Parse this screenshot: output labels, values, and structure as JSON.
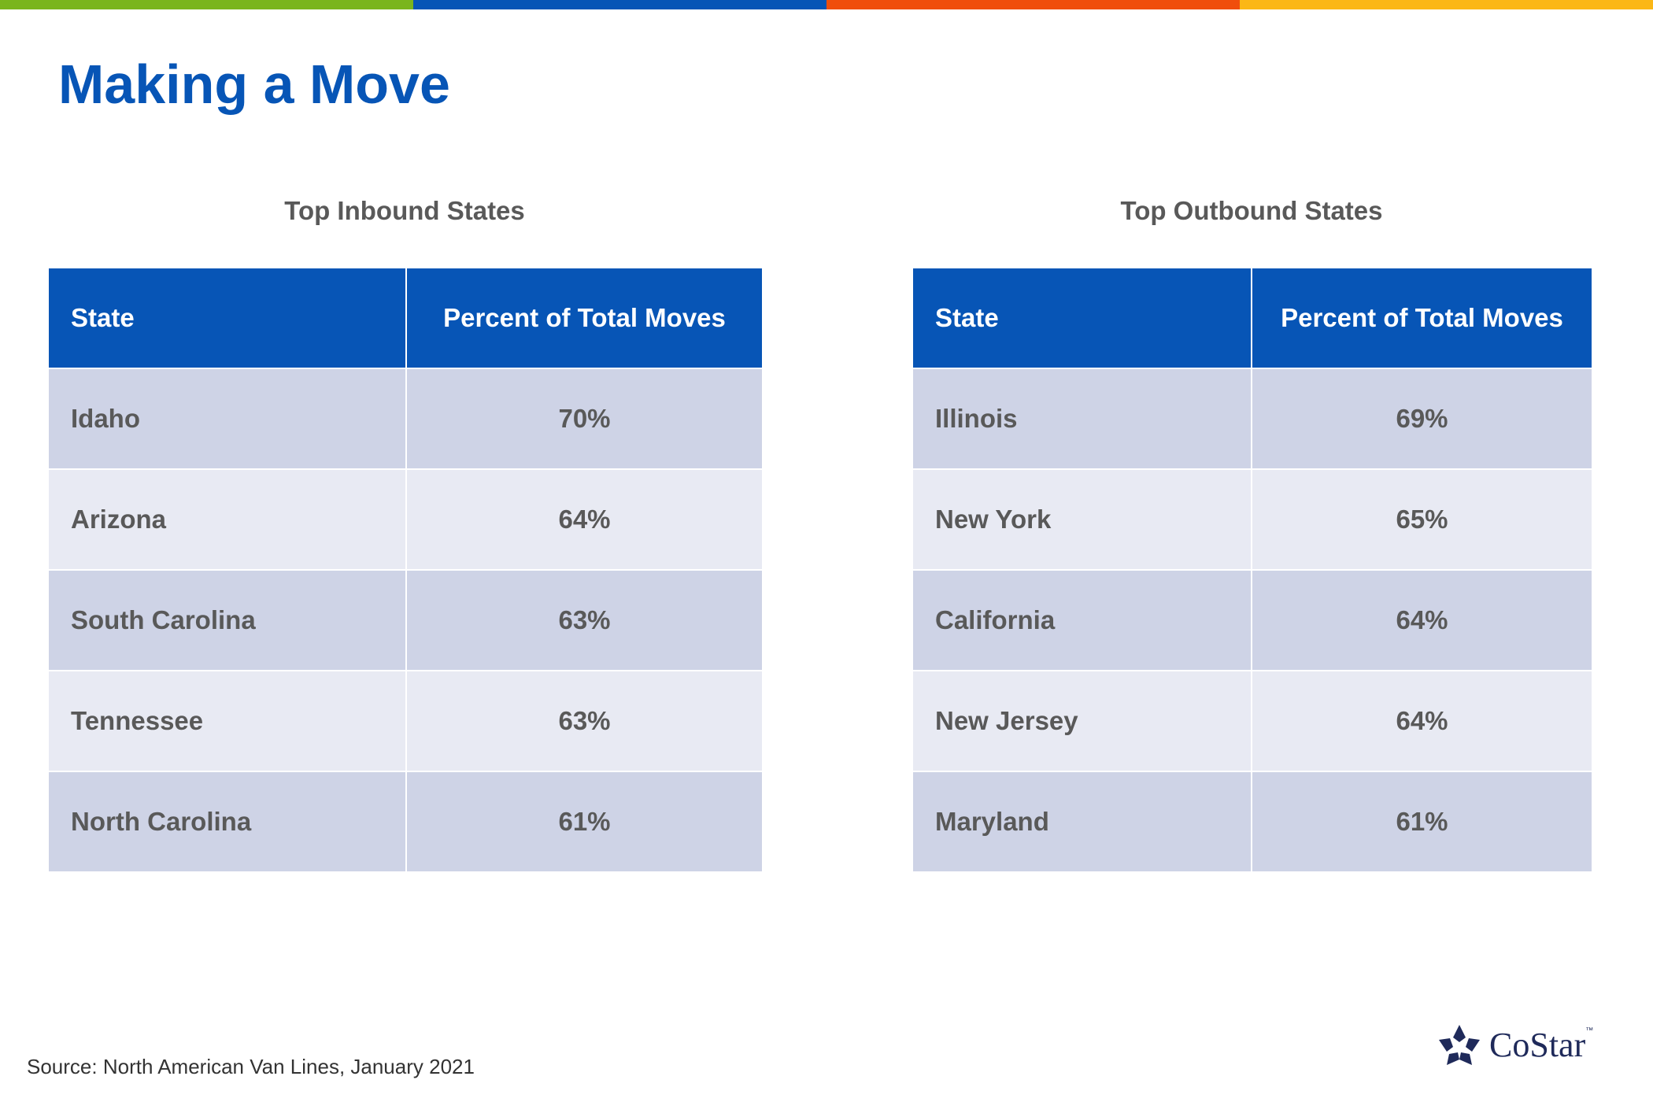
{
  "colors": {
    "bar_green": "#7ab51d",
    "bar_blue": "#0755b6",
    "bar_orange": "#f04e0c",
    "bar_yellow": "#fbb716",
    "title": "#0755b6",
    "header_bg": "#0755b6",
    "row_dark": "#ced3e6",
    "row_light": "#e8eaf3"
  },
  "title": "Making a Move",
  "inbound": {
    "caption": "Top Inbound States",
    "headers": [
      "State",
      "Percent of Total Moves"
    ],
    "rows": [
      {
        "state": "Idaho",
        "percent": "70%"
      },
      {
        "state": "Arizona",
        "percent": "64%"
      },
      {
        "state": "South Carolina",
        "percent": "63%"
      },
      {
        "state": "Tennessee",
        "percent": "63%"
      },
      {
        "state": "North Carolina",
        "percent": "61%"
      }
    ]
  },
  "outbound": {
    "caption": "Top Outbound States",
    "headers": [
      "State",
      "Percent of Total Moves"
    ],
    "rows": [
      {
        "state": "Illinois",
        "percent": "69%"
      },
      {
        "state": "New York",
        "percent": "65%"
      },
      {
        "state": "California",
        "percent": "64%"
      },
      {
        "state": "New Jersey",
        "percent": "64%"
      },
      {
        "state": "Maryland",
        "percent": "61%"
      }
    ]
  },
  "source": "Source: North American Van Lines, January 2021",
  "logo": {
    "icon": "costar-star-icon",
    "text": "CoStar",
    "tm": "™"
  }
}
